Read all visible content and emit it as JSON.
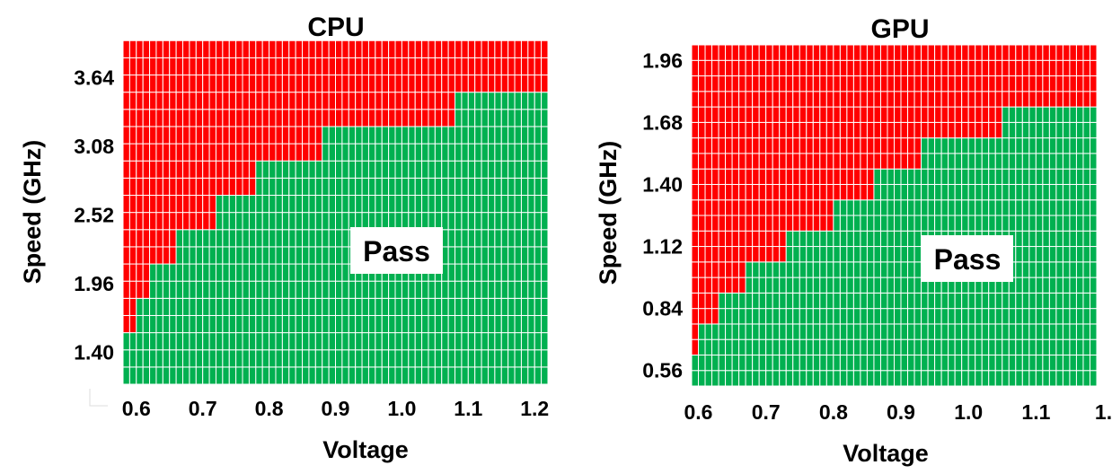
{
  "colors": {
    "fail": "#ff0000",
    "pass": "#00b050",
    "grid": "#ffffff"
  },
  "chart_data": [
    {
      "type": "heatmap",
      "title": "CPU",
      "xlabel": "Voltage",
      "ylabel": "Speed (GHz)",
      "x_ticks": [
        "0.6",
        "0.7",
        "0.8",
        "0.9",
        "1.0",
        "1.1",
        "1.2"
      ],
      "y_ticks": [
        "3.64",
        "3.08",
        "2.52",
        "1.96",
        "1.40"
      ],
      "xlim": [
        0.58,
        1.22
      ],
      "ylim": [
        1.14,
        3.92
      ],
      "cell_voltage_step": 0.01,
      "cell_speed_step": 0.14,
      "annotation": "Pass",
      "pass_max_speed": [
        {
          "voltage_from": 0.58,
          "voltage_to": 0.6,
          "max_speed": 1.56
        },
        {
          "voltage_from": 0.6,
          "voltage_to": 0.62,
          "max_speed": 1.82
        },
        {
          "voltage_from": 0.62,
          "voltage_to": 0.66,
          "max_speed": 2.1
        },
        {
          "voltage_from": 0.66,
          "voltage_to": 0.72,
          "max_speed": 2.38
        },
        {
          "voltage_from": 0.72,
          "voltage_to": 0.78,
          "max_speed": 2.66
        },
        {
          "voltage_from": 0.78,
          "voltage_to": 0.88,
          "max_speed": 2.94
        },
        {
          "voltage_from": 0.88,
          "voltage_to": 1.08,
          "max_speed": 3.22
        },
        {
          "voltage_from": 1.08,
          "voltage_to": 1.22,
          "max_speed": 3.5
        }
      ]
    },
    {
      "type": "heatmap",
      "title": "GPU",
      "xlabel": "Voltage",
      "ylabel": "Speed (GHz)",
      "x_ticks": [
        "0.6",
        "0.7",
        "0.8",
        "0.9",
        "1.0",
        "1.1",
        "1."
      ],
      "y_ticks": [
        "1.96",
        "1.68",
        "1.40",
        "1.12",
        "0.84",
        "0.56"
      ],
      "xlim": [
        0.59,
        1.19
      ],
      "ylim": [
        0.49,
        2.03
      ],
      "cell_voltage_step": 0.01,
      "cell_speed_step": 0.07,
      "annotation": "Pass",
      "pass_max_speed": [
        {
          "voltage_from": 0.59,
          "voltage_to": 0.6,
          "max_speed": 0.63
        },
        {
          "voltage_from": 0.6,
          "voltage_to": 0.63,
          "max_speed": 0.77
        },
        {
          "voltage_from": 0.63,
          "voltage_to": 0.67,
          "max_speed": 0.91
        },
        {
          "voltage_from": 0.67,
          "voltage_to": 0.73,
          "max_speed": 1.05
        },
        {
          "voltage_from": 0.73,
          "voltage_to": 0.8,
          "max_speed": 1.19
        },
        {
          "voltage_from": 0.8,
          "voltage_to": 0.86,
          "max_speed": 1.33
        },
        {
          "voltage_from": 0.86,
          "voltage_to": 0.93,
          "max_speed": 1.47
        },
        {
          "voltage_from": 0.93,
          "voltage_to": 1.05,
          "max_speed": 1.61
        },
        {
          "voltage_from": 1.05,
          "voltage_to": 1.19,
          "max_speed": 1.75
        }
      ]
    }
  ]
}
